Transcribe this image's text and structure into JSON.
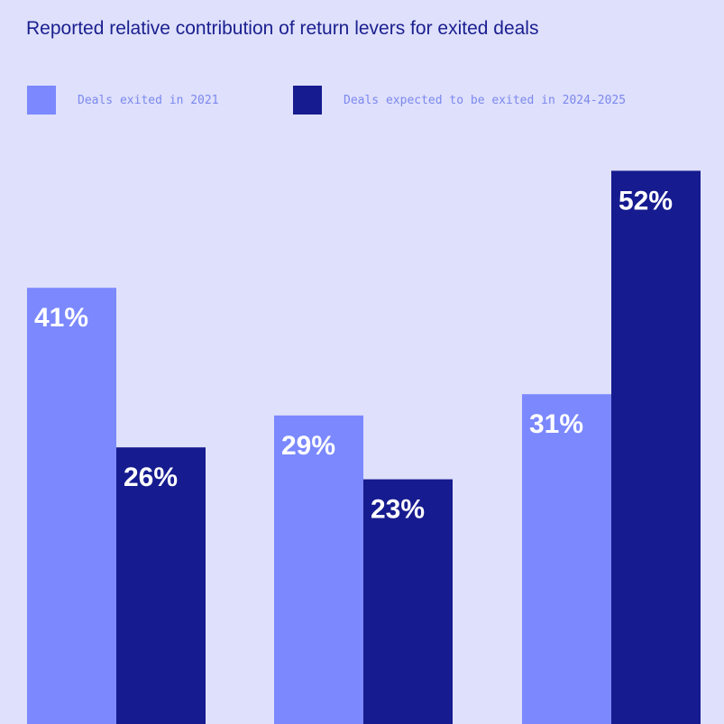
{
  "chart_data": {
    "type": "bar",
    "title": "Reported relative contribution of return levers for exited deals",
    "categories": [
      "",
      "",
      ""
    ],
    "series": [
      {
        "name": "Deals exited in 2021",
        "color": "#7b88fe",
        "values": [
          41,
          29,
          31
        ]
      },
      {
        "name": "Deals expected to be exited in 2024-2025",
        "color": "#161b8f",
        "values": [
          26,
          23,
          52
        ]
      }
    ],
    "value_suffix": "%",
    "ylim": [
      0,
      60
    ],
    "grid": false,
    "legend_position": "top-left"
  }
}
